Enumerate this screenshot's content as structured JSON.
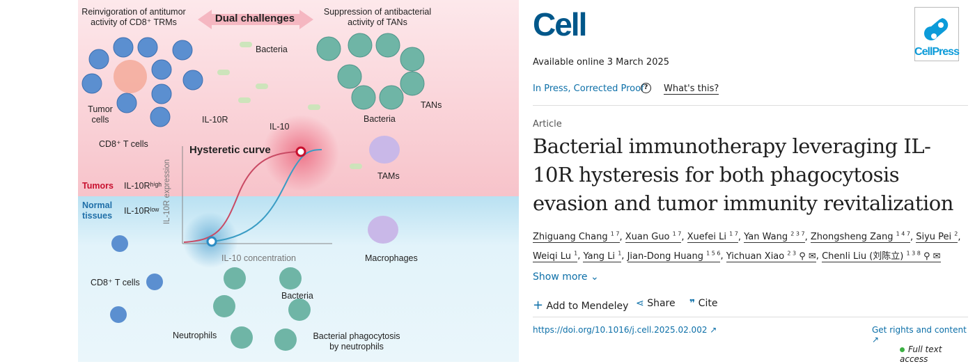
{
  "abstract": {
    "header_left": "Reinvigoration of antitumor activity of CD8⁺ TRMs",
    "header_center": "Dual challenges",
    "header_right": "Suppression of antibacterial activity of TANs",
    "labels": {
      "bacteria_top": "Bacteria",
      "tumor_cells": "Tumor cells",
      "il10r": "IL-10R",
      "il10": "IL-10",
      "cd8_top": "CD8⁺ T cells",
      "tans": "TANs",
      "bacteria_right": "Bacteria",
      "tams": "TAMs",
      "hysteretic": "Hysteretic curve",
      "yaxis": "IL-10R expression",
      "xaxis": "IL-10 concentration",
      "tumors": "Tumors",
      "il10r_high": "IL-10Rʰⁱᵍʰ",
      "normal": "Normal tissues",
      "il10r_low": "IL-10Rˡᵒʷ",
      "macrophages": "Macrophages",
      "cd8_bottom": "CD8⁺ T cells",
      "bacteria_bottom": "Bacteria",
      "neutrophils": "Neutrophils",
      "phago": "Bacterial phagocytosis by neutrophils"
    },
    "colors": {
      "tumor_bg": "#fde3e6",
      "normal_bg": "#dff1f8",
      "red": "#c8102e",
      "blue": "#2b8cc4"
    }
  },
  "article": {
    "journal": "Cell",
    "publisher": "CellPress",
    "available": "Available online 3 March 2025",
    "status": "In Press, Corrected Proof",
    "whats_this": "What's this?",
    "type": "Article",
    "title": "Bacterial immunotherapy leveraging IL-10R hysteresis for both phagocytosis evasion and tumor immunity revitalization",
    "authors": [
      {
        "name": "Zhiguang Chang",
        "sup": "1 7"
      },
      {
        "name": "Xuan Guo",
        "sup": "1 7"
      },
      {
        "name": "Xuefei Li",
        "sup": "1 7"
      },
      {
        "name": "Yan Wang",
        "sup": "2 3 7"
      },
      {
        "name": "Zhongsheng Zang",
        "sup": "1 4 7"
      },
      {
        "name": "Siyu Pei",
        "sup": "2"
      },
      {
        "name": "Weiqi Lu",
        "sup": "1"
      },
      {
        "name": "Yang Li",
        "sup": "1"
      },
      {
        "name": "Jian-Dong Huang",
        "sup": "1 5 6"
      },
      {
        "name": "Yichuan Xiao",
        "sup": "2 3",
        "icons": "person-icon mail-icon"
      },
      {
        "name": "Chenli Liu (刘陈立)",
        "sup": "1 3 8",
        "icons": "person-icon mail-icon"
      }
    ],
    "show_more": "Show more",
    "add_mendeley": "Add to Mendeley",
    "share": "Share",
    "cite": "Cite",
    "doi": "https://doi.org/10.1016/j.cell.2025.02.002",
    "rights": "Get rights and content",
    "access": "Full text access",
    "colors": {
      "link": "#0c6fa8",
      "logo": "#00578a",
      "access": "#3cb043"
    }
  }
}
